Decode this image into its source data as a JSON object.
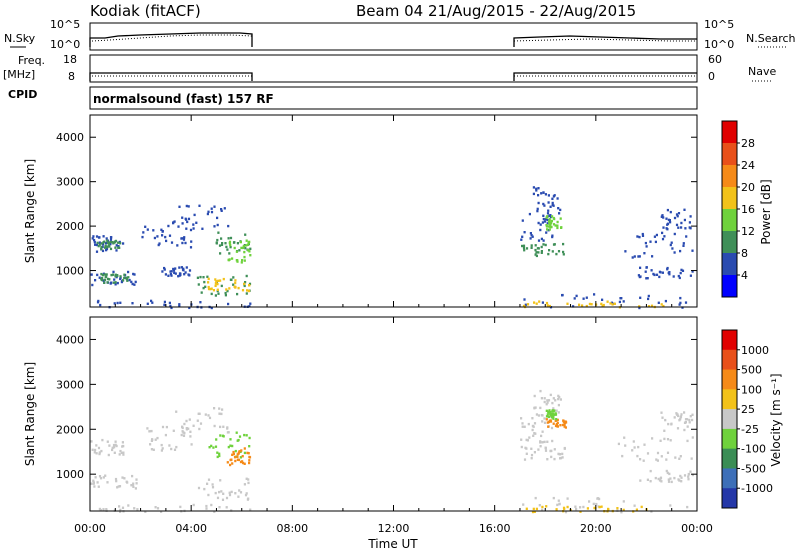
{
  "header": {
    "station": "Kodiak (fitACF)",
    "beam_date": "Beam 04 21/Aug/2015 - 22/Aug/2015"
  },
  "strips": {
    "nsky_label": "N.Sky",
    "nsearch_label": "N.Search",
    "nsky_ticks": [
      "10^5",
      "10^0"
    ],
    "nsearch_ticks": [
      "10^5",
      "10^0"
    ],
    "freq_label": "Freq.",
    "freq_unit": "[MHz]",
    "freq_ticks": [
      "18",
      "8"
    ],
    "nave_label": "Nave",
    "nave_ticks": [
      "60",
      "0"
    ],
    "cpid_label": "CPID",
    "cpid_text": "normalsound (fast) 157 RF"
  },
  "chart_data": [
    {
      "type": "heatmap",
      "id": "power",
      "ylabel": "Slant Range [km]",
      "xlabel": "Time UT",
      "y_ticks": [
        1000,
        2000,
        3000,
        4000
      ],
      "ylim": [
        180,
        4500
      ],
      "colorbar": {
        "label": "Power [dB]",
        "ticks": [
          "4",
          "8",
          "12",
          "16",
          "20",
          "24",
          "28"
        ],
        "colors": [
          "#0000ff",
          "#2a4bb0",
          "#3f8f58",
          "#6fd23c",
          "#f2c21a",
          "#f58a18",
          "#e8501a",
          "#e00000"
        ]
      },
      "clusters": [
        {
          "t0": 0.0,
          "t1": 1.3,
          "r0": 1450,
          "r1": 1800,
          "color": "#2a4bb0"
        },
        {
          "t0": 0.2,
          "t1": 1.2,
          "r0": 1500,
          "r1": 1700,
          "color": "#3f8f58"
        },
        {
          "t0": 0.0,
          "t1": 1.8,
          "r0": 700,
          "r1": 1000,
          "color": "#2a4bb0"
        },
        {
          "t0": 0.4,
          "t1": 1.5,
          "r0": 750,
          "r1": 950,
          "color": "#3f8f58"
        },
        {
          "t0": 2.0,
          "t1": 4.0,
          "r0": 1550,
          "r1": 2100,
          "color": "#2a4bb0"
        },
        {
          "t0": 3.2,
          "t1": 5.5,
          "r0": 1950,
          "r1": 2500,
          "color": "#2a4bb0"
        },
        {
          "t0": 4.8,
          "t1": 6.3,
          "r0": 1400,
          "r1": 1900,
          "color": "#3f8f58"
        },
        {
          "t0": 5.4,
          "t1": 6.3,
          "r0": 1200,
          "r1": 1700,
          "color": "#6fd23c"
        },
        {
          "t0": 2.8,
          "t1": 4.0,
          "r0": 900,
          "r1": 1100,
          "color": "#2a4bb0"
        },
        {
          "t0": 4.2,
          "t1": 6.3,
          "r0": 450,
          "r1": 950,
          "color": "#3f8f58"
        },
        {
          "t0": 4.6,
          "t1": 6.3,
          "r0": 550,
          "r1": 850,
          "color": "#f2c21a"
        },
        {
          "t0": 0.0,
          "t1": 6.3,
          "r0": 180,
          "r1": 350,
          "color": "#2a4bb0"
        },
        {
          "t0": 17.0,
          "t1": 18.8,
          "r0": 1350,
          "r1": 1650,
          "color": "#3f8f58"
        },
        {
          "t0": 17.0,
          "t1": 18.3,
          "r0": 1700,
          "r1": 2300,
          "color": "#2a4bb0"
        },
        {
          "t0": 17.5,
          "t1": 18.6,
          "r0": 2300,
          "r1": 2900,
          "color": "#2a4bb0"
        },
        {
          "t0": 18.0,
          "t1": 18.6,
          "r0": 1950,
          "r1": 2250,
          "color": "#6fd23c"
        },
        {
          "t0": 20.8,
          "t1": 23.8,
          "r0": 1300,
          "r1": 1900,
          "color": "#2a4bb0"
        },
        {
          "t0": 21.6,
          "t1": 23.8,
          "r0": 850,
          "r1": 1100,
          "color": "#2a4bb0"
        },
        {
          "t0": 22.5,
          "t1": 23.8,
          "r0": 1950,
          "r1": 2400,
          "color": "#2a4bb0"
        },
        {
          "t0": 17.0,
          "t1": 23.7,
          "r0": 180,
          "r1": 500,
          "color": "#2a4bb0"
        },
        {
          "t0": 17.0,
          "t1": 23.0,
          "r0": 180,
          "r1": 330,
          "color": "#f2c21a"
        }
      ]
    },
    {
      "type": "heatmap",
      "id": "velocity",
      "ylabel": "Slant Range [km]",
      "xlabel": "Time UT",
      "y_ticks": [
        1000,
        2000,
        3000,
        4000
      ],
      "ylim": [
        180,
        4500
      ],
      "colorbar": {
        "label": "Velocity [m s⁻¹]",
        "ticks": [
          "1000",
          "500",
          "100",
          "25",
          "-25",
          "-100",
          "-500",
          "-1000"
        ],
        "colors": [
          "#2437a8",
          "#3d6fb8",
          "#3a8d55",
          "#6fd23c",
          "#c8c8c8",
          "#f2c21a",
          "#f58a18",
          "#e8501a",
          "#e00000"
        ]
      },
      "clusters": [
        {
          "t0": 0.0,
          "t1": 1.3,
          "r0": 1450,
          "r1": 1800,
          "color": "#c8c8c8"
        },
        {
          "t0": 0.0,
          "t1": 1.8,
          "r0": 700,
          "r1": 1000,
          "color": "#c8c8c8"
        },
        {
          "t0": 2.0,
          "t1": 4.0,
          "r0": 1550,
          "r1": 2100,
          "color": "#c8c8c8"
        },
        {
          "t0": 3.2,
          "t1": 5.5,
          "r0": 1950,
          "r1": 2500,
          "color": "#c8c8c8"
        },
        {
          "t0": 4.6,
          "t1": 6.3,
          "r0": 1400,
          "r1": 2000,
          "color": "#6fd23c"
        },
        {
          "t0": 5.4,
          "t1": 6.3,
          "r0": 1200,
          "r1": 1600,
          "color": "#f58a18"
        },
        {
          "t0": 4.2,
          "t1": 6.3,
          "r0": 450,
          "r1": 950,
          "color": "#c8c8c8"
        },
        {
          "t0": 0.0,
          "t1": 6.3,
          "r0": 180,
          "r1": 350,
          "color": "#c8c8c8"
        },
        {
          "t0": 17.0,
          "t1": 18.8,
          "r0": 1350,
          "r1": 1650,
          "color": "#c8c8c8"
        },
        {
          "t0": 17.0,
          "t1": 18.3,
          "r0": 1700,
          "r1": 2300,
          "color": "#c8c8c8"
        },
        {
          "t0": 17.5,
          "t1": 18.6,
          "r0": 2300,
          "r1": 2900,
          "color": "#c8c8c8"
        },
        {
          "t0": 18.0,
          "t1": 18.8,
          "r0": 2050,
          "r1": 2250,
          "color": "#f58a18"
        },
        {
          "t0": 18.0,
          "t1": 18.4,
          "r0": 2250,
          "r1": 2450,
          "color": "#6fd23c"
        },
        {
          "t0": 20.8,
          "t1": 23.8,
          "r0": 1300,
          "r1": 1900,
          "color": "#c8c8c8"
        },
        {
          "t0": 21.6,
          "t1": 23.8,
          "r0": 850,
          "r1": 1100,
          "color": "#c8c8c8"
        },
        {
          "t0": 22.5,
          "t1": 23.8,
          "r0": 1950,
          "r1": 2400,
          "color": "#c8c8c8"
        },
        {
          "t0": 17.0,
          "t1": 23.7,
          "r0": 180,
          "r1": 500,
          "color": "#c8c8c8"
        },
        {
          "t0": 17.0,
          "t1": 22.0,
          "r0": 180,
          "r1": 320,
          "color": "#f2c21a"
        }
      ]
    }
  ],
  "time_axis": {
    "labels": [
      "00:00",
      "04:00",
      "08:00",
      "12:00",
      "16:00",
      "20:00",
      "00:00"
    ],
    "label": "Time UT",
    "xlim_hours": [
      0,
      24
    ],
    "data_gap_hours": [
      6.3,
      17.0
    ]
  }
}
